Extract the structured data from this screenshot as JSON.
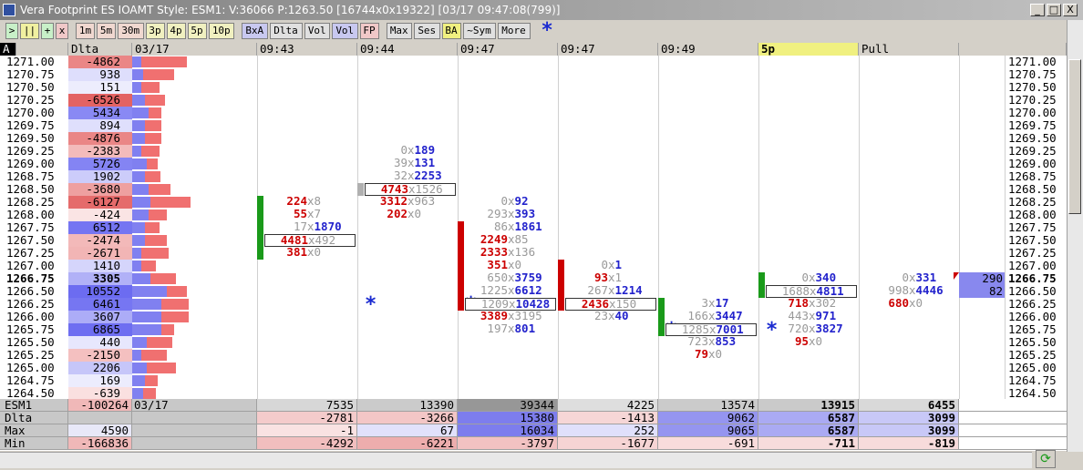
{
  "title": "Vera Footprint ES IOAMT Style: ESM1: V:36066 P:1263.50 [16744x0x19322] [03/17 09:47:08(799)]",
  "window_controls": [
    "_",
    "□",
    "X"
  ],
  "toolbar": [
    {
      "label": ">",
      "bg": "#c8f0c8"
    },
    {
      "label": "||",
      "bg": "#f0f0a0"
    },
    {
      "label": "+",
      "bg": "#c8f0c8"
    },
    {
      "label": "x",
      "bg": "#f0c8c8"
    },
    {
      "label": "1m",
      "bg": "#f0d8d0"
    },
    {
      "label": "5m",
      "bg": "#f0d8d0"
    },
    {
      "label": "30m",
      "bg": "#f0d8d0"
    },
    {
      "label": "3p",
      "bg": "#f0f0c0"
    },
    {
      "label": "4p",
      "bg": "#f0f0c0"
    },
    {
      "label": "5p",
      "bg": "#f0f0c0"
    },
    {
      "label": "10p",
      "bg": "#f0f0c0"
    },
    {
      "label": "BxA",
      "bg": "#c8c8f0"
    },
    {
      "label": "Dlta",
      "bg": "#e0e0e0"
    },
    {
      "label": "Vol",
      "bg": "#e0e0e0"
    },
    {
      "label": "Vol",
      "bg": "#c8c8f0"
    },
    {
      "label": "FP",
      "bg": "#f0c8c8"
    },
    {
      "label": "Max",
      "bg": "#e0e0e0"
    },
    {
      "label": "Ses",
      "bg": "#e0e0e0"
    },
    {
      "label": "BA",
      "bg": "#f0f080"
    },
    {
      "label": "~Sym",
      "bg": "#e0e0e0"
    },
    {
      "label": "More",
      "bg": "#e0e0e0"
    }
  ],
  "toolbar_star": "*",
  "header": {
    "corner": "A",
    "delta": "Dlta",
    "date": "03/17",
    "columns": [
      "09:43",
      "09:44",
      "09:47",
      "09:47",
      "09:49",
      "5p",
      "Pull"
    ]
  },
  "ladder": {
    "prices": [
      "1271.00",
      "1270.75",
      "1270.50",
      "1270.25",
      "1270.00",
      "1269.75",
      "1269.50",
      "1269.25",
      "1269.00",
      "1268.75",
      "1268.50",
      "1268.25",
      "1268.00",
      "1267.75",
      "1267.50",
      "1267.25",
      "1267.00",
      "1266.75",
      "1266.50",
      "1266.25",
      "1266.00",
      "1265.75",
      "1265.50",
      "1265.25",
      "1265.00",
      "1264.75",
      "1264.50"
    ],
    "deltas": [
      -4862,
      938,
      151,
      -6526,
      5434,
      894,
      -4876,
      -2383,
      5726,
      1902,
      -3680,
      -6127,
      -424,
      6512,
      -2474,
      -2671,
      1410,
      3305,
      10552,
      6461,
      3607,
      6865,
      440,
      -2150,
      2206,
      169,
      -639
    ],
    "profile_buy": [
      10,
      12,
      10,
      14,
      18,
      14,
      14,
      10,
      16,
      14,
      18,
      20,
      18,
      14,
      14,
      10,
      10,
      20,
      38,
      32,
      32,
      32,
      16,
      10,
      16,
      14,
      12
    ],
    "profile_sell": [
      50,
      34,
      20,
      22,
      14,
      18,
      18,
      20,
      12,
      17,
      24,
      44,
      20,
      16,
      24,
      30,
      16,
      28,
      22,
      30,
      30,
      14,
      28,
      28,
      32,
      14,
      14
    ],
    "current_price": "1266.75"
  },
  "separator": "x",
  "columns": [
    {
      "bar": {
        "from": "1268.25",
        "to": "1267.25",
        "color": "#1a9a1a"
      },
      "cells": [
        {
          "price": "1268.25",
          "bid": 224,
          "ask": 8,
          "side": "bid"
        },
        {
          "price": "1268.00",
          "bid": 55,
          "ask": 7,
          "side": "bid"
        },
        {
          "price": "1267.75",
          "bid": 17,
          "ask": 1870,
          "side": "ask"
        },
        {
          "price": "1267.50",
          "bid": 4481,
          "ask": 492,
          "side": "bid",
          "box": true
        },
        {
          "price": "1267.25",
          "bid": 381,
          "ask": 0,
          "side": "bid"
        }
      ]
    },
    {
      "bar": {
        "from": "1268.50",
        "to": "1268.50",
        "color": "#b0b0b0"
      },
      "star": "1266.25",
      "cells": [
        {
          "price": "1269.25",
          "bid": 0,
          "ask": 189,
          "side": "ask"
        },
        {
          "price": "1269.00",
          "bid": 39,
          "ask": 131,
          "side": "ask"
        },
        {
          "price": "1268.75",
          "bid": 32,
          "ask": 2253,
          "side": "ask"
        },
        {
          "price": "1268.50",
          "bid": 4743,
          "ask": 1526,
          "side": "bid",
          "box": true
        },
        {
          "price": "1268.25",
          "bid": 3312,
          "ask": 963,
          "side": "bid"
        },
        {
          "price": "1268.00",
          "bid": 202,
          "ask": 0,
          "side": "bid"
        }
      ]
    },
    {
      "bar": {
        "from": "1267.75",
        "to": "1266.25",
        "color": "#cc0000"
      },
      "star": "1266.25",
      "cells": [
        {
          "price": "1268.25",
          "bid": 0,
          "ask": 92,
          "side": "ask"
        },
        {
          "price": "1268.00",
          "bid": 293,
          "ask": 393,
          "side": "ask"
        },
        {
          "price": "1267.75",
          "bid": 86,
          "ask": 1861,
          "side": "ask"
        },
        {
          "price": "1267.50",
          "bid": 2249,
          "ask": 85,
          "side": "bid"
        },
        {
          "price": "1267.25",
          "bid": 2333,
          "ask": 136,
          "side": "bid"
        },
        {
          "price": "1267.00",
          "bid": 351,
          "ask": 0,
          "side": "bid"
        },
        {
          "price": "1266.75",
          "bid": 650,
          "ask": 3759,
          "side": "ask"
        },
        {
          "price": "1266.50",
          "bid": 1225,
          "ask": 6612,
          "side": "ask"
        },
        {
          "price": "1266.25",
          "bid": 1209,
          "ask": 10428,
          "side": "ask",
          "box": true
        },
        {
          "price": "1266.00",
          "bid": 3389,
          "ask": 3195,
          "side": "bid"
        },
        {
          "price": "1265.75",
          "bid": 197,
          "ask": 801,
          "side": "ask"
        }
      ]
    },
    {
      "bar": {
        "from": "1267.00",
        "to": "1266.25",
        "color": "#cc0000"
      },
      "cells": [
        {
          "price": "1267.00",
          "bid": 0,
          "ask": 1,
          "side": "ask"
        },
        {
          "price": "1266.75",
          "bid": 93,
          "ask": 1,
          "side": "bid"
        },
        {
          "price": "1266.50",
          "bid": 267,
          "ask": 1214,
          "side": "ask"
        },
        {
          "price": "1266.25",
          "bid": 2436,
          "ask": 150,
          "side": "bid",
          "box": true
        },
        {
          "price": "1266.00",
          "bid": 23,
          "ask": 40,
          "side": "ask"
        }
      ]
    },
    {
      "bar": {
        "from": "1266.25",
        "to": "1265.75",
        "color": "#1a9a1a"
      },
      "star": "1265.75",
      "cells": [
        {
          "price": "1266.25",
          "bid": 3,
          "ask": 17,
          "side": "ask"
        },
        {
          "price": "1266.00",
          "bid": 166,
          "ask": 3447,
          "side": "ask"
        },
        {
          "price": "1265.75",
          "bid": 1285,
          "ask": 7001,
          "side": "ask",
          "box": true
        },
        {
          "price": "1265.50",
          "bid": 723,
          "ask": 853,
          "side": "ask"
        },
        {
          "price": "1265.25",
          "bid": 79,
          "ask": 0,
          "side": "bid"
        }
      ]
    },
    {
      "bar": {
        "from": "1266.75",
        "to": "1266.50",
        "color": "#1a9a1a"
      },
      "star": "1265.75",
      "cells": [
        {
          "price": "1266.75",
          "bid": 0,
          "ask": 340,
          "side": "ask"
        },
        {
          "price": "1266.50",
          "bid": 1688,
          "ask": 4811,
          "side": "ask",
          "box": true
        },
        {
          "price": "1266.25",
          "bid": 718,
          "ask": 302,
          "side": "bid"
        },
        {
          "price": "1266.00",
          "bid": 443,
          "ask": 971,
          "side": "ask"
        },
        {
          "price": "1265.75",
          "bid": 720,
          "ask": 3827,
          "side": "ask"
        },
        {
          "price": "1265.50",
          "bid": 95,
          "ask": 0,
          "side": "bid"
        }
      ]
    },
    {
      "cells": [
        {
          "price": "1266.75",
          "bid": 0,
          "ask": 331,
          "side": "ask"
        },
        {
          "price": "1266.50",
          "bid": 998,
          "ask": 4446,
          "side": "ask"
        },
        {
          "price": "1266.25",
          "bid": 680,
          "ask": 0,
          "side": "bid"
        }
      ]
    }
  ],
  "extra": [
    {
      "price": "1266.75",
      "value": 290
    },
    {
      "price": "1266.50",
      "value": 82
    }
  ],
  "summary": {
    "labels": [
      "ESM1",
      "Dlta",
      "Max",
      "Min"
    ],
    "totals": [
      -100264,
      null,
      4590,
      -166836
    ],
    "date": "03/17",
    "rows": [
      [
        7535,
        13390,
        39344,
        4225,
        13574,
        13915,
        6455
      ],
      [
        -2781,
        -3266,
        15380,
        -1413,
        9062,
        6587,
        3099
      ],
      [
        -1,
        67,
        16034,
        252,
        9065,
        6587,
        3099
      ],
      [
        -4292,
        -6221,
        -3797,
        -1677,
        -691,
        -711,
        -819
      ]
    ]
  }
}
